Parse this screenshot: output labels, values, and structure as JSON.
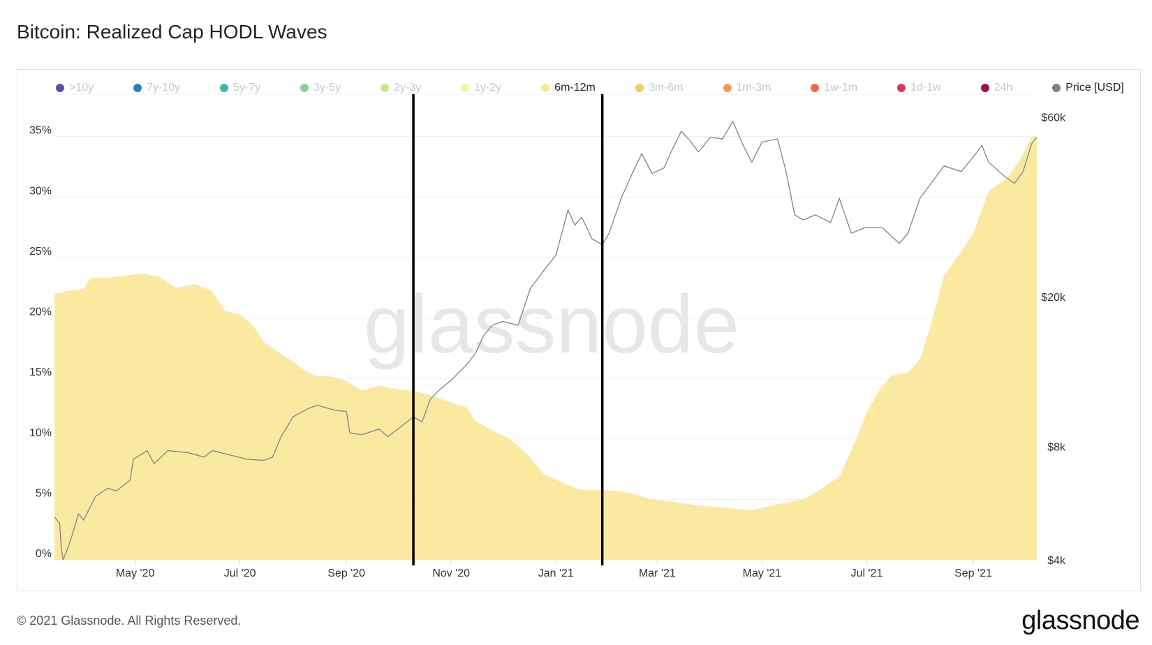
{
  "title": "Bitcoin: Realized Cap HODL Waves",
  "footer": {
    "copyright": "© 2021 Glassnode. All Rights Reserved.",
    "logo": "glassnode"
  },
  "watermark": "glassnode",
  "legend": [
    {
      "label": ">10y",
      "color": "#5b4ea8",
      "active": false
    },
    {
      "label": "7y-10y",
      "color": "#2f7fc0",
      "active": false
    },
    {
      "label": "5y-7y",
      "color": "#3cb6a8",
      "active": false
    },
    {
      "label": "3y-5y",
      "color": "#84d199",
      "active": false
    },
    {
      "label": "2y-3y",
      "color": "#c6e88a",
      "active": false
    },
    {
      "label": "1y-2y",
      "color": "#f2f5a8",
      "active": false
    },
    {
      "label": "6m-12m",
      "color": "#fbe796",
      "active": true
    },
    {
      "label": "3m-6m",
      "color": "#f9c86a",
      "active": false
    },
    {
      "label": "1m-3m",
      "color": "#f59b50",
      "active": false
    },
    {
      "label": "1w-1m",
      "color": "#ee6a44",
      "active": false
    },
    {
      "label": "1d-1w",
      "color": "#d9385a",
      "active": false
    },
    {
      "label": "24h",
      "color": "#9a0f4e",
      "active": false
    },
    {
      "label": "Price [USD]",
      "color": "#808080",
      "active": true
    }
  ],
  "chart_data": {
    "type": "area",
    "x_ticks": [
      "May '20",
      "Jul '20",
      "Sep '20",
      "Nov '20",
      "Jan '21",
      "Mar '21",
      "May '21",
      "Jul '21",
      "Sep '21"
    ],
    "x_tick_dates": [
      "2020-05-01",
      "2020-07-01",
      "2020-09-01",
      "2020-11-01",
      "2021-01-01",
      "2021-03-01",
      "2021-05-01",
      "2021-07-01",
      "2021-09-01"
    ],
    "y_left": {
      "ticks": [
        "0%",
        "5%",
        "10%",
        "15%",
        "20%",
        "25%",
        "30%",
        "35%"
      ],
      "ylim": [
        0,
        38.5
      ]
    },
    "y_right": {
      "ticks": [
        "$4k",
        "$8k",
        "$20k",
        "$60k"
      ],
      "tick_values": [
        4000,
        8000,
        20000,
        60000
      ],
      "scale": "log",
      "ylim": [
        4000,
        69000
      ]
    },
    "grid": true,
    "legend_position": "top",
    "series": [
      {
        "name": "6m-12m",
        "axis": "left",
        "color": "#fbe796",
        "points": [
          [
            "2020-03-15",
            22.0
          ],
          [
            "2020-03-25",
            22.3
          ],
          [
            "2020-04-01",
            22.4
          ],
          [
            "2020-04-05",
            23.3
          ],
          [
            "2020-04-15",
            23.3
          ],
          [
            "2020-04-25",
            23.5
          ],
          [
            "2020-05-05",
            23.7
          ],
          [
            "2020-05-15",
            23.4
          ],
          [
            "2020-05-25",
            22.5
          ],
          [
            "2020-06-05",
            22.8
          ],
          [
            "2020-06-15",
            22.2
          ],
          [
            "2020-06-22",
            20.6
          ],
          [
            "2020-07-01",
            20.3
          ],
          [
            "2020-07-08",
            19.5
          ],
          [
            "2020-07-15",
            18.0
          ],
          [
            "2020-07-22",
            17.3
          ],
          [
            "2020-08-01",
            16.4
          ],
          [
            "2020-08-08",
            15.6
          ],
          [
            "2020-08-15",
            15.2
          ],
          [
            "2020-08-22",
            15.2
          ],
          [
            "2020-09-01",
            14.8
          ],
          [
            "2020-09-10",
            14.0
          ],
          [
            "2020-09-20",
            14.4
          ],
          [
            "2020-10-01",
            14.1
          ],
          [
            "2020-10-10",
            14.0
          ],
          [
            "2020-10-20",
            13.6
          ],
          [
            "2020-11-01",
            13.0
          ],
          [
            "2020-11-10",
            12.6
          ],
          [
            "2020-11-15",
            11.5
          ],
          [
            "2020-11-25",
            10.7
          ],
          [
            "2020-12-05",
            10.0
          ],
          [
            "2020-12-15",
            8.8
          ],
          [
            "2020-12-25",
            7.1
          ],
          [
            "2021-01-05",
            6.4
          ],
          [
            "2021-01-15",
            5.8
          ],
          [
            "2021-01-25",
            5.8
          ],
          [
            "2021-02-05",
            5.7
          ],
          [
            "2021-02-15",
            5.5
          ],
          [
            "2021-02-25",
            5.0
          ],
          [
            "2021-03-10",
            4.8
          ],
          [
            "2021-03-25",
            4.5
          ],
          [
            "2021-04-10",
            4.3
          ],
          [
            "2021-04-25",
            4.1
          ],
          [
            "2021-05-10",
            4.6
          ],
          [
            "2021-05-25",
            5.0
          ],
          [
            "2021-06-05",
            5.9
          ],
          [
            "2021-06-15",
            6.9
          ],
          [
            "2021-06-25",
            10.0
          ],
          [
            "2021-07-01",
            12.2
          ],
          [
            "2021-07-08",
            14.0
          ],
          [
            "2021-07-15",
            15.2
          ],
          [
            "2021-07-25",
            15.5
          ],
          [
            "2021-08-01",
            16.6
          ],
          [
            "2021-08-08",
            19.8
          ],
          [
            "2021-08-15",
            23.5
          ],
          [
            "2021-08-25",
            25.5
          ],
          [
            "2021-09-01",
            27.0
          ],
          [
            "2021-09-10",
            30.5
          ],
          [
            "2021-09-20",
            31.5
          ],
          [
            "2021-09-28",
            33.0
          ],
          [
            "2021-10-05",
            35.0
          ],
          [
            "2021-10-08",
            35.0
          ]
        ]
      },
      {
        "name": "Price [USD]",
        "axis": "right",
        "color": "#8a8a8a",
        "points": [
          [
            "2020-03-15",
            5200
          ],
          [
            "2020-03-18",
            5000
          ],
          [
            "2020-03-19",
            4300
          ],
          [
            "2020-03-20",
            4000
          ],
          [
            "2020-03-22",
            4200
          ],
          [
            "2020-03-25",
            4600
          ],
          [
            "2020-03-29",
            5300
          ],
          [
            "2020-04-01",
            5100
          ],
          [
            "2020-04-08",
            5900
          ],
          [
            "2020-04-15",
            6200
          ],
          [
            "2020-04-20",
            6100
          ],
          [
            "2020-04-28",
            6500
          ],
          [
            "2020-04-30",
            7400
          ],
          [
            "2020-05-08",
            7800
          ],
          [
            "2020-05-12",
            7200
          ],
          [
            "2020-05-20",
            7800
          ],
          [
            "2020-06-01",
            7700
          ],
          [
            "2020-06-10",
            7500
          ],
          [
            "2020-06-15",
            7800
          ],
          [
            "2020-06-25",
            7600
          ],
          [
            "2020-07-05",
            7400
          ],
          [
            "2020-07-15",
            7350
          ],
          [
            "2020-07-20",
            7500
          ],
          [
            "2020-07-25",
            8500
          ],
          [
            "2020-08-01",
            9600
          ],
          [
            "2020-08-10",
            10100
          ],
          [
            "2020-08-15",
            10300
          ],
          [
            "2020-08-25",
            10000
          ],
          [
            "2020-09-01",
            9900
          ],
          [
            "2020-09-03",
            8700
          ],
          [
            "2020-09-10",
            8600
          ],
          [
            "2020-09-20",
            8900
          ],
          [
            "2020-09-25",
            8500
          ],
          [
            "2020-10-01",
            8900
          ],
          [
            "2020-10-10",
            9600
          ],
          [
            "2020-10-15",
            9300
          ],
          [
            "2020-10-20",
            10700
          ],
          [
            "2020-10-25",
            11300
          ],
          [
            "2020-11-01",
            12000
          ],
          [
            "2020-11-10",
            13200
          ],
          [
            "2020-11-15",
            14100
          ],
          [
            "2020-11-20",
            15800
          ],
          [
            "2020-11-25",
            16800
          ],
          [
            "2020-12-01",
            17200
          ],
          [
            "2020-12-10",
            16800
          ],
          [
            "2020-12-17",
            21000
          ],
          [
            "2020-12-25",
            23500
          ],
          [
            "2021-01-01",
            25800
          ],
          [
            "2021-01-08",
            34000
          ],
          [
            "2021-01-12",
            31000
          ],
          [
            "2021-01-16",
            32500
          ],
          [
            "2021-01-22",
            28500
          ],
          [
            "2021-01-28",
            27500
          ],
          [
            "2021-02-01",
            29500
          ],
          [
            "2021-02-08",
            36500
          ],
          [
            "2021-02-15",
            43000
          ],
          [
            "2021-02-20",
            48000
          ],
          [
            "2021-02-26",
            42500
          ],
          [
            "2021-03-05",
            44000
          ],
          [
            "2021-03-10",
            49500
          ],
          [
            "2021-03-15",
            55000
          ],
          [
            "2021-03-20",
            52000
          ],
          [
            "2021-03-25",
            48500
          ],
          [
            "2021-04-01",
            53000
          ],
          [
            "2021-04-08",
            52500
          ],
          [
            "2021-04-14",
            58500
          ],
          [
            "2021-04-20",
            50500
          ],
          [
            "2021-04-25",
            45500
          ],
          [
            "2021-05-01",
            51500
          ],
          [
            "2021-05-10",
            52500
          ],
          [
            "2021-05-15",
            43000
          ],
          [
            "2021-05-20",
            33000
          ],
          [
            "2021-05-25",
            32000
          ],
          [
            "2021-06-01",
            33000
          ],
          [
            "2021-06-10",
            31500
          ],
          [
            "2021-06-15",
            36500
          ],
          [
            "2021-06-22",
            29500
          ],
          [
            "2021-06-30",
            30500
          ],
          [
            "2021-07-10",
            30500
          ],
          [
            "2021-07-20",
            27700
          ],
          [
            "2021-07-25",
            29500
          ],
          [
            "2021-08-01",
            36500
          ],
          [
            "2021-08-10",
            41500
          ],
          [
            "2021-08-15",
            44500
          ],
          [
            "2021-08-25",
            43000
          ],
          [
            "2021-09-01",
            47000
          ],
          [
            "2021-09-06",
            50500
          ],
          [
            "2021-09-10",
            45500
          ],
          [
            "2021-09-20",
            41500
          ],
          [
            "2021-09-25",
            40000
          ],
          [
            "2021-09-30",
            43000
          ],
          [
            "2021-10-05",
            51000
          ],
          [
            "2021-10-08",
            53000
          ]
        ]
      }
    ],
    "annotations": [
      {
        "type": "vertical-line",
        "x": "2020-10-10",
        "color": "#000000"
      },
      {
        "type": "vertical-line",
        "x": "2021-01-28",
        "color": "#000000"
      }
    ]
  }
}
